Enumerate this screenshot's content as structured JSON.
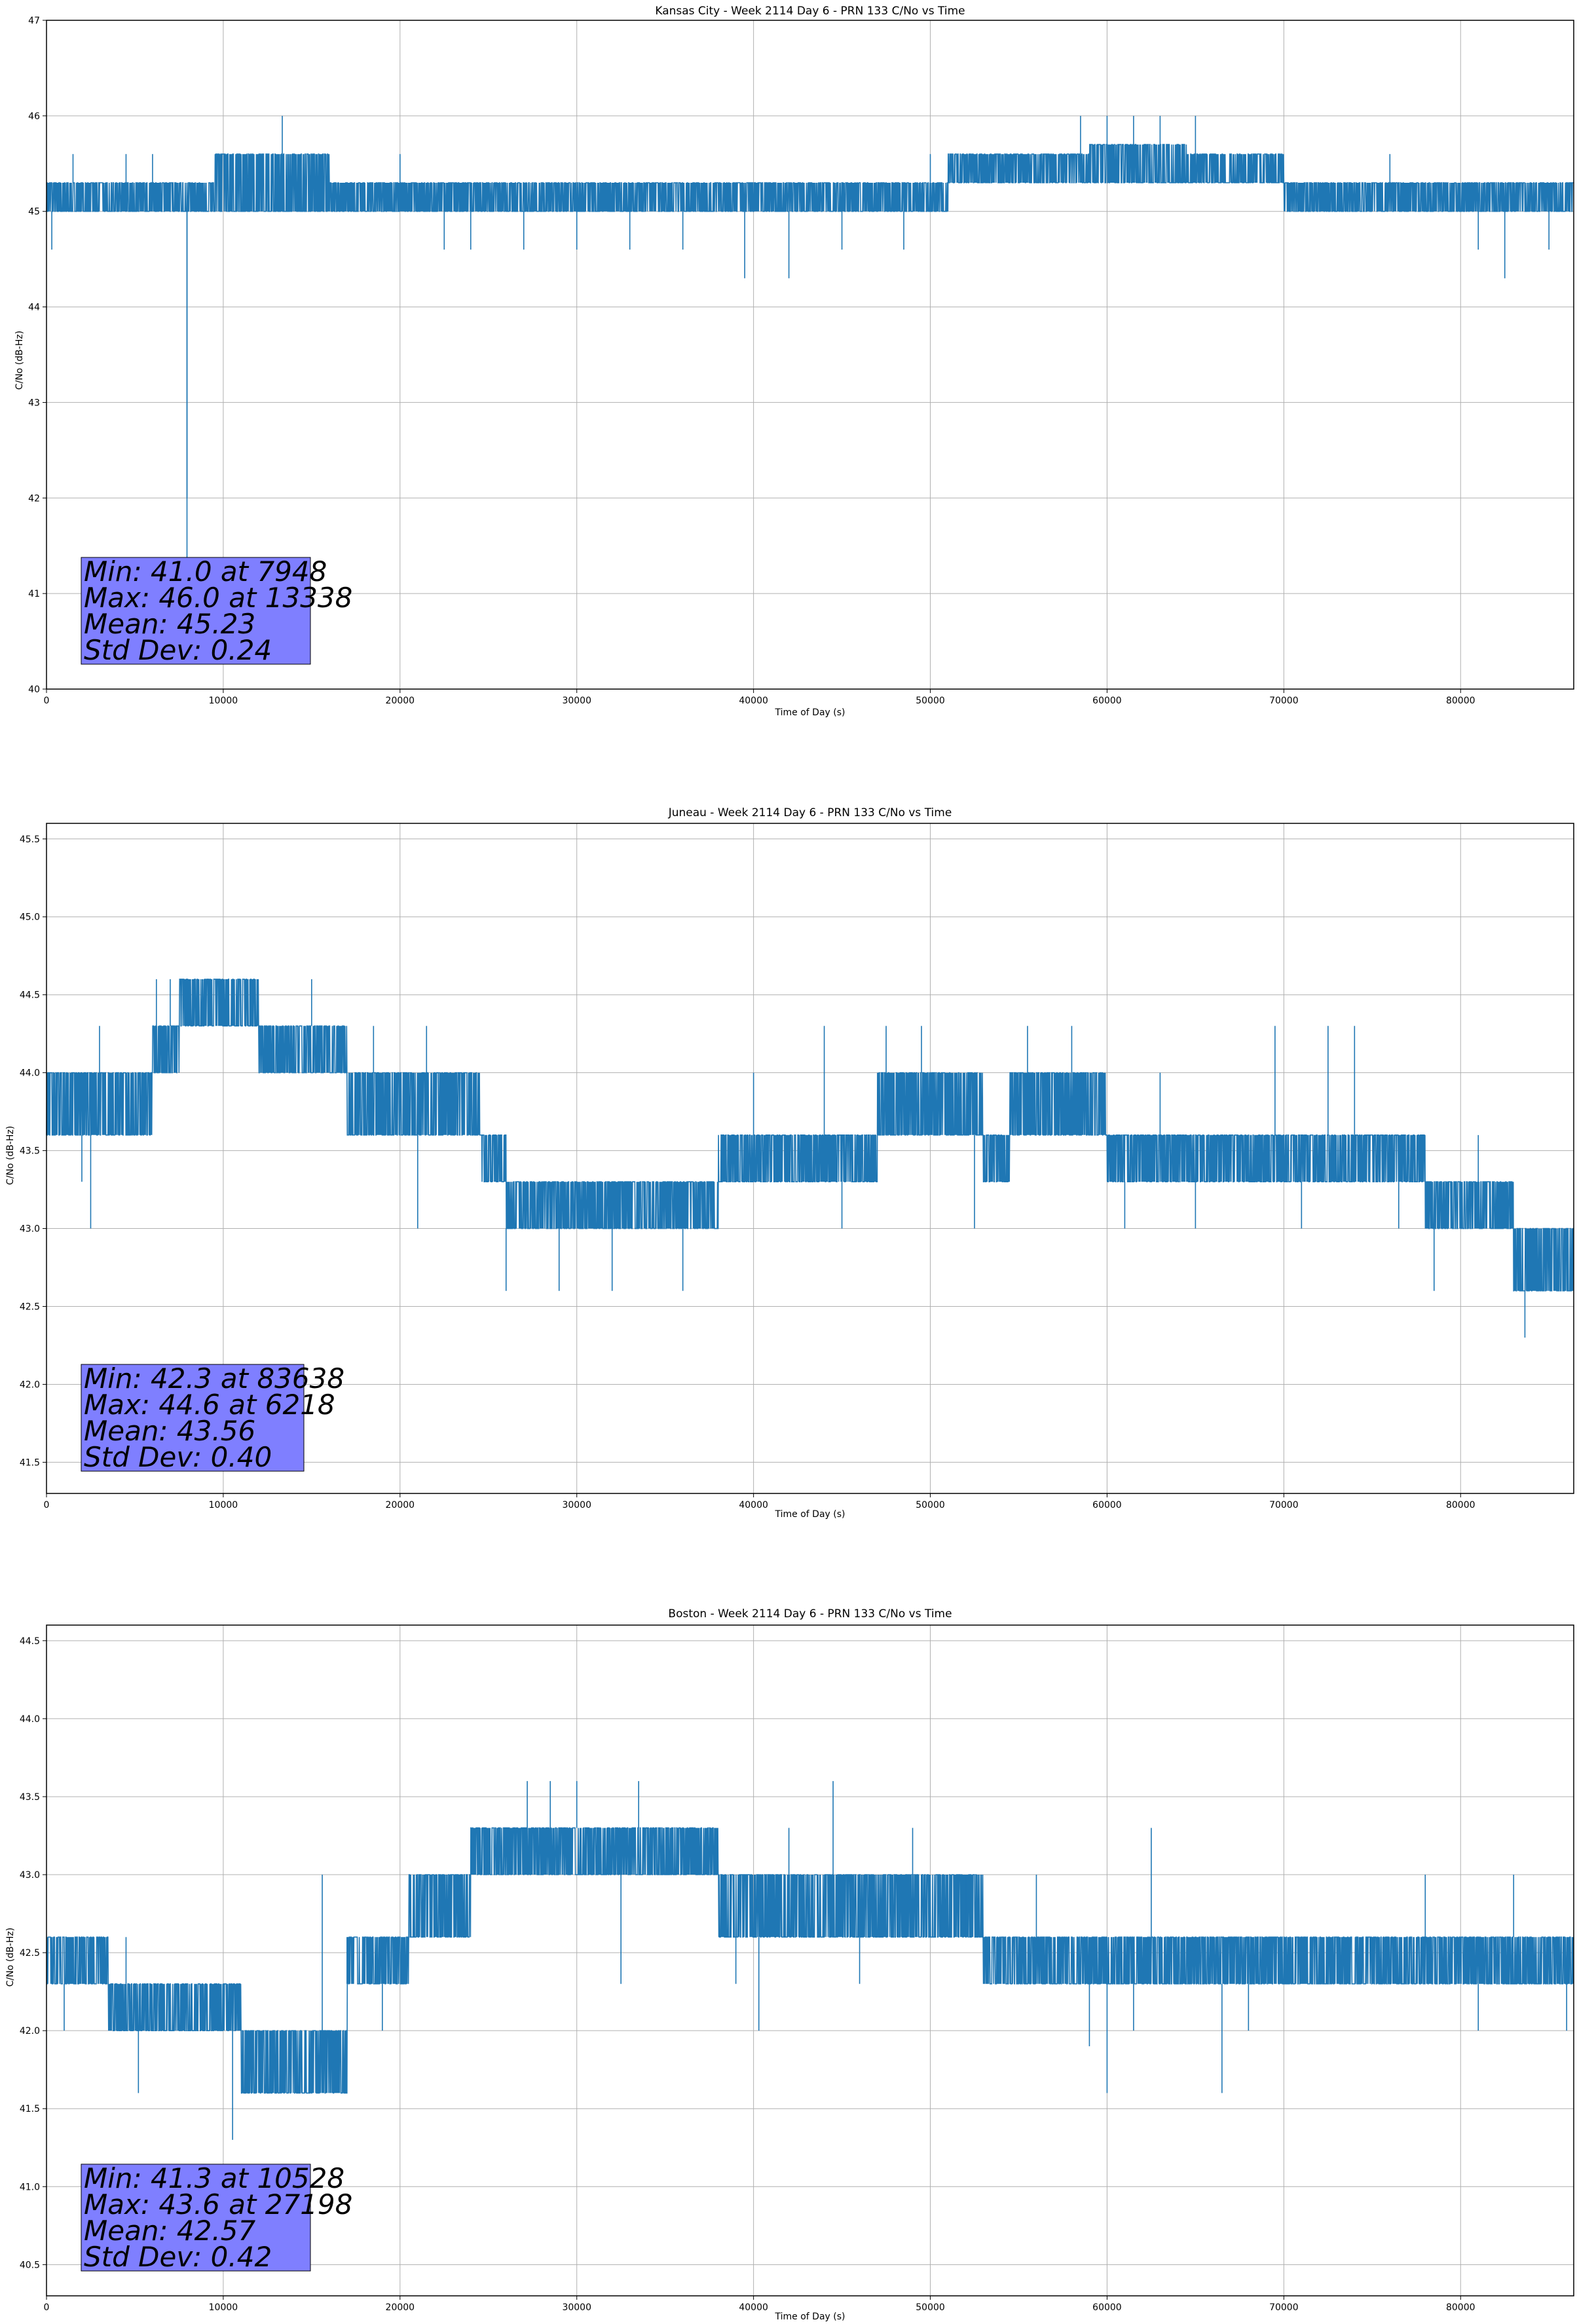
{
  "colors": {
    "series": "#1f77b4",
    "grid": "#b0b0b0",
    "stat_box": "#7f7fff"
  },
  "chart_data": [
    {
      "type": "line",
      "title": "Kansas City - Week 2114 Day 6 - PRN 133 C/No vs Time",
      "xlabel": "Time of Day (s)",
      "ylabel": "C/No (dB-Hz)",
      "xlim": [
        0,
        86400
      ],
      "ylim": [
        40,
        47
      ],
      "xticks": [
        "0",
        "10000",
        "20000",
        "30000",
        "40000",
        "50000",
        "60000",
        "70000",
        "80000"
      ],
      "yticks": [
        "40",
        "41",
        "42",
        "43",
        "44",
        "45",
        "46",
        "47"
      ],
      "grid": true,
      "stats": [
        "Min: 41.0 at 7948",
        "Max: 46.0 at 13338",
        "Mean: 45.23",
        "Std Dev: 0.24"
      ],
      "series": [
        {
          "quantum": 0.3,
          "band": [
            [
              0,
              45.0,
              45.3
            ],
            [
              7500,
              45.0,
              45.3
            ],
            [
              9500,
              45.0,
              45.6
            ],
            [
              14000,
              45.0,
              45.6
            ],
            [
              16000,
              45.0,
              45.3
            ],
            [
              21500,
              45.0,
              45.3
            ],
            [
              22500,
              45.0,
              45.3
            ],
            [
              50000,
              45.0,
              45.3
            ],
            [
              51000,
              45.3,
              45.6
            ],
            [
              57000,
              45.3,
              45.6
            ],
            [
              59000,
              45.3,
              45.7
            ],
            [
              64500,
              45.3,
              45.6
            ],
            [
              68000,
              45.3,
              45.6
            ],
            [
              70000,
              45.0,
              45.3
            ],
            [
              86400,
              45.0,
              45.3
            ]
          ],
          "spikes": [
            [
              1500,
              45.6
            ],
            [
              4500,
              45.6
            ],
            [
              6000,
              45.6
            ],
            [
              13338,
              46.0
            ],
            [
              20000,
              45.6
            ],
            [
              22500,
              44.6
            ],
            [
              24000,
              44.6
            ],
            [
              27000,
              44.6
            ],
            [
              30000,
              44.6
            ],
            [
              33000,
              44.6
            ],
            [
              36000,
              44.6
            ],
            [
              39500,
              44.3
            ],
            [
              42000,
              44.3
            ],
            [
              45000,
              44.6
            ],
            [
              48500,
              44.6
            ],
            [
              50000,
              45.6
            ],
            [
              58500,
              46.0
            ],
            [
              60000,
              46.0
            ],
            [
              61500,
              46.0
            ],
            [
              63000,
              46.0
            ],
            [
              65000,
              46.0
            ],
            [
              70000,
              45.0
            ],
            [
              76000,
              45.6
            ],
            [
              81000,
              44.6
            ],
            [
              82500,
              44.3
            ],
            [
              85000,
              44.6
            ],
            [
              7948,
              41.0
            ],
            [
              7950,
              42.0
            ],
            [
              300,
              44.6
            ]
          ]
        }
      ]
    },
    {
      "type": "line",
      "title": "Juneau - Week 2114 Day 6 - PRN 133 C/No vs Time",
      "xlabel": "Time of Day (s)",
      "ylabel": "C/No (dB-Hz)",
      "xlim": [
        0,
        86400
      ],
      "ylim": [
        41.3,
        45.6
      ],
      "xticks": [
        "0",
        "10000",
        "20000",
        "30000",
        "40000",
        "50000",
        "60000",
        "70000",
        "80000"
      ],
      "yticks": [
        "41.5",
        "42.0",
        "42.5",
        "43.0",
        "43.5",
        "44.0",
        "44.5",
        "45.0",
        "45.5"
      ],
      "grid": true,
      "stats": [
        "Min: 42.3 at 83638",
        "Max: 44.6 at 6218",
        "Mean: 43.56",
        "Std Dev: 0.40"
      ],
      "series": [
        {
          "quantum": 0.3,
          "band": [
            [
              0,
              43.6,
              44.0
            ],
            [
              4500,
              43.6,
              44.0
            ],
            [
              6000,
              44.0,
              44.3
            ],
            [
              7500,
              44.3,
              44.6
            ],
            [
              11000,
              44.3,
              44.6
            ],
            [
              12000,
              44.0,
              44.3
            ],
            [
              16500,
              44.0,
              44.3
            ],
            [
              17000,
              43.6,
              44.0
            ],
            [
              23500,
              43.6,
              44.0
            ],
            [
              24500,
              43.3,
              43.6
            ],
            [
              26000,
              43.0,
              43.3
            ],
            [
              34000,
              43.0,
              43.3
            ],
            [
              38000,
              43.3,
              43.6
            ],
            [
              45000,
              43.3,
              43.6
            ],
            [
              47000,
              43.6,
              44.0
            ],
            [
              51500,
              43.6,
              44.0
            ],
            [
              53000,
              43.3,
              43.6
            ],
            [
              54500,
              43.6,
              44.0
            ],
            [
              59000,
              43.6,
              44.0
            ],
            [
              60000,
              43.3,
              43.6
            ],
            [
              75000,
              43.3,
              43.6
            ],
            [
              78000,
              43.0,
              43.3
            ],
            [
              82000,
              43.0,
              43.3
            ],
            [
              83000,
              42.6,
              43.0
            ],
            [
              86400,
              42.6,
              43.0
            ]
          ],
          "spikes": [
            [
              2000,
              43.3
            ],
            [
              2500,
              43.0
            ],
            [
              3000,
              44.3
            ],
            [
              6218,
              44.6
            ],
            [
              7000,
              44.6
            ],
            [
              11500,
              44.6
            ],
            [
              15000,
              44.6
            ],
            [
              18500,
              44.3
            ],
            [
              21000,
              43.0
            ],
            [
              21500,
              44.3
            ],
            [
              26000,
              42.6
            ],
            [
              29000,
              42.6
            ],
            [
              32000,
              42.6
            ],
            [
              36000,
              42.6
            ],
            [
              40000,
              44.0
            ],
            [
              44000,
              44.3
            ],
            [
              45000,
              43.0
            ],
            [
              47500,
              44.3
            ],
            [
              49500,
              44.3
            ],
            [
              52500,
              43.0
            ],
            [
              55500,
              44.3
            ],
            [
              58000,
              44.3
            ],
            [
              61000,
              43.0
            ],
            [
              63000,
              44.0
            ],
            [
              65000,
              43.0
            ],
            [
              69500,
              44.3
            ],
            [
              71000,
              43.0
            ],
            [
              72500,
              44.3
            ],
            [
              74000,
              44.3
            ],
            [
              76500,
              43.0
            ],
            [
              78500,
              42.6
            ],
            [
              81000,
              43.6
            ],
            [
              83638,
              42.3
            ],
            [
              85000,
              42.6
            ]
          ]
        }
      ]
    },
    {
      "type": "line",
      "title": "Boston - Week 2114 Day 6 - PRN 133 C/No vs Time",
      "xlabel": "Time of Day (s)",
      "ylabel": "C/No (dB-Hz)",
      "xlim": [
        0,
        86400
      ],
      "ylim": [
        40.3,
        44.6
      ],
      "xticks": [
        "0",
        "10000",
        "20000",
        "30000",
        "40000",
        "50000",
        "60000",
        "70000",
        "80000"
      ],
      "yticks": [
        "40.5",
        "41.0",
        "41.5",
        "42.0",
        "42.5",
        "43.0",
        "43.5",
        "44.0",
        "44.5"
      ],
      "grid": true,
      "stats": [
        "Min: 41.3 at 10528",
        "Max: 43.6 at 27198",
        "Mean: 42.57",
        "Std Dev: 0.42"
      ],
      "series": [
        {
          "quantum": 0.3,
          "band": [
            [
              0,
              42.3,
              42.6
            ],
            [
              3000,
              42.3,
              42.6
            ],
            [
              3500,
              42.0,
              42.3
            ],
            [
              10000,
              42.0,
              42.3
            ],
            [
              11000,
              41.6,
              42.0
            ],
            [
              16500,
              41.6,
              42.0
            ],
            [
              17000,
              42.3,
              42.6
            ],
            [
              19500,
              42.3,
              42.6
            ],
            [
              20500,
              42.6,
              43.0
            ],
            [
              23000,
              42.6,
              43.0
            ],
            [
              24000,
              43.0,
              43.3
            ],
            [
              36000,
              43.0,
              43.3
            ],
            [
              38000,
              42.6,
              43.0
            ],
            [
              50000,
              42.6,
              43.0
            ],
            [
              53000,
              42.3,
              42.6
            ],
            [
              86400,
              42.3,
              42.6
            ]
          ],
          "spikes": [
            [
              1000,
              42.0
            ],
            [
              4500,
              42.6
            ],
            [
              5200,
              41.6
            ],
            [
              10528,
              41.3
            ],
            [
              11500,
              41.6
            ],
            [
              15600,
              43.0
            ],
            [
              17000,
              42.6
            ],
            [
              19000,
              42.0
            ],
            [
              21000,
              43.0
            ],
            [
              27198,
              43.6
            ],
            [
              28500,
              43.6
            ],
            [
              30000,
              43.6
            ],
            [
              32500,
              42.3
            ],
            [
              33500,
              43.6
            ],
            [
              34500,
              43.3
            ],
            [
              39000,
              42.3
            ],
            [
              40300,
              42.0
            ],
            [
              42000,
              43.3
            ],
            [
              44500,
              43.6
            ],
            [
              46000,
              42.3
            ],
            [
              49000,
              43.3
            ],
            [
              52000,
              43.0
            ],
            [
              56000,
              43.0
            ],
            [
              59000,
              41.9
            ],
            [
              60000,
              41.6
            ],
            [
              61500,
              42.0
            ],
            [
              62500,
              43.3
            ],
            [
              66500,
              41.6
            ],
            [
              68000,
              42.0
            ],
            [
              75000,
              42.6
            ],
            [
              78000,
              43.0
            ],
            [
              81000,
              42.0
            ],
            [
              83000,
              43.0
            ],
            [
              86000,
              42.0
            ]
          ]
        }
      ]
    }
  ]
}
